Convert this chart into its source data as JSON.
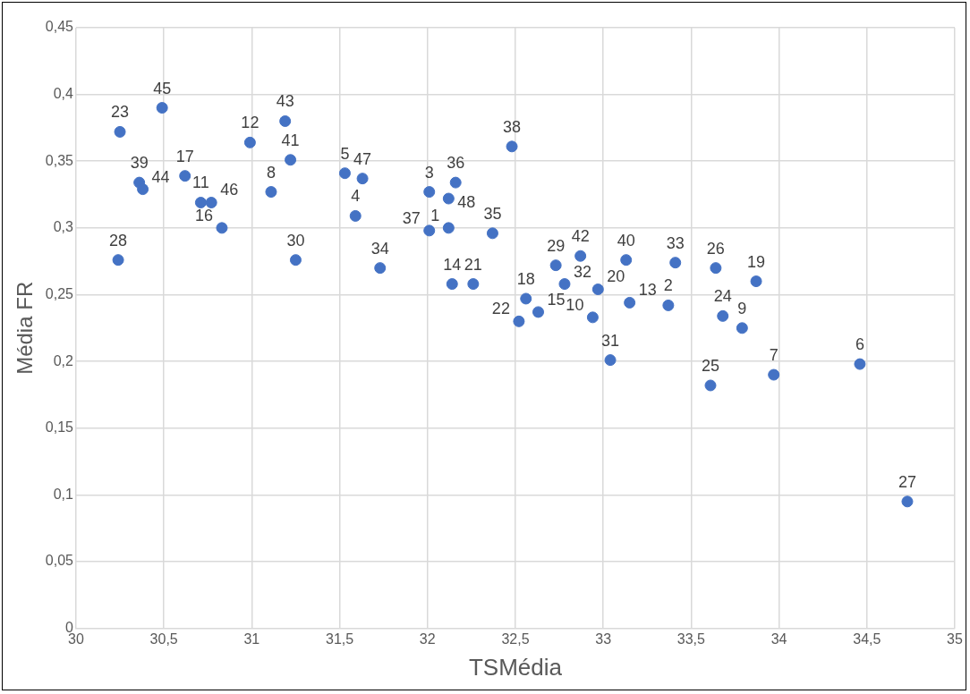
{
  "chart_data": {
    "type": "scatter",
    "xlabel": "TSMédia",
    "ylabel": "Média FR",
    "color": "#4472c4",
    "marker": "circle",
    "grid": true,
    "legend": false,
    "xlim": [
      30,
      35
    ],
    "ylim": [
      0,
      0.45
    ],
    "xticks": [
      30,
      {
        "value": 30.5,
        "label": "30,5"
      },
      31,
      {
        "value": 31.5,
        "label": "31,5"
      },
      32,
      {
        "value": 32.5,
        "label": "32,5"
      },
      33,
      {
        "value": 33.5,
        "label": "33,5"
      },
      34,
      {
        "value": 34.5,
        "label": "34,5"
      },
      35
    ],
    "yticks": [
      0,
      {
        "value": 0.05,
        "label": "0,05"
      },
      {
        "value": 0.1,
        "label": "0,1"
      },
      {
        "value": 0.15,
        "label": "0,15"
      },
      {
        "value": 0.2,
        "label": "0,2"
      },
      {
        "value": 0.25,
        "label": "0,25"
      },
      {
        "value": 0.3,
        "label": "0,3"
      },
      {
        "value": 0.35,
        "label": "0,35"
      },
      {
        "value": 0.4,
        "label": "0,4"
      },
      {
        "value": 0.45,
        "label": "0,45"
      }
    ],
    "x": [
      30.25,
      30.49,
      30.36,
      30.38,
      30.24,
      30.62,
      30.71,
      30.77,
      30.83,
      30.99,
      31.19,
      31.22,
      31.11,
      31.25,
      31.53,
      31.63,
      31.59,
      31.73,
      32.01,
      32.12,
      32.16,
      32.12,
      32.01,
      32.37,
      32.48,
      32.14,
      32.26,
      32.73,
      32.87,
      32.78,
      32.56,
      32.63,
      32.52,
      32.97,
      32.94,
      33.13,
      33.15,
      33.04,
      33.41,
      33.37,
      33.64,
      33.68,
      33.79,
      33.87,
      33.61,
      33.97,
      34.46,
      34.73
    ],
    "values": [
      0.372,
      0.39,
      0.334,
      0.329,
      0.276,
      0.339,
      0.319,
      0.319,
      0.3,
      0.364,
      0.38,
      0.351,
      0.327,
      0.276,
      0.341,
      0.337,
      0.309,
      0.27,
      0.327,
      0.322,
      0.334,
      0.3,
      0.298,
      0.296,
      0.361,
      0.258,
      0.258,
      0.272,
      0.279,
      0.258,
      0.247,
      0.237,
      0.23,
      0.254,
      0.233,
      0.276,
      0.244,
      0.201,
      0.274,
      0.242,
      0.27,
      0.234,
      0.225,
      0.26,
      0.182,
      0.19,
      0.198,
      0.095
    ],
    "annotations": [
      {
        "text": "23",
        "x": 30.25,
        "y": 0.372
      },
      {
        "text": "45",
        "x": 30.49,
        "y": 0.39
      },
      {
        "text": "39",
        "x": 30.36,
        "y": 0.334
      },
      {
        "text": "44",
        "x": 30.38,
        "y": 0.329
      },
      {
        "text": "28",
        "x": 30.24,
        "y": 0.276
      },
      {
        "text": "17",
        "x": 30.62,
        "y": 0.339
      },
      {
        "text": "11",
        "x": 30.71,
        "y": 0.319
      },
      {
        "text": "46",
        "x": 30.77,
        "y": 0.319
      },
      {
        "text": "16",
        "x": 30.83,
        "y": 0.3
      },
      {
        "text": "12",
        "x": 30.99,
        "y": 0.364
      },
      {
        "text": "43",
        "x": 31.19,
        "y": 0.38
      },
      {
        "text": "41",
        "x": 31.22,
        "y": 0.351
      },
      {
        "text": "8",
        "x": 31.11,
        "y": 0.327
      },
      {
        "text": "30",
        "x": 31.25,
        "y": 0.276
      },
      {
        "text": "5",
        "x": 31.53,
        "y": 0.341
      },
      {
        "text": "47",
        "x": 31.63,
        "y": 0.337
      },
      {
        "text": "4",
        "x": 31.59,
        "y": 0.309
      },
      {
        "text": "34",
        "x": 31.73,
        "y": 0.27
      },
      {
        "text": "3",
        "x": 32.01,
        "y": 0.327
      },
      {
        "text": "48",
        "x": 32.12,
        "y": 0.322
      },
      {
        "text": "36",
        "x": 32.16,
        "y": 0.334
      },
      {
        "text": "1",
        "x": 32.12,
        "y": 0.3
      },
      {
        "text": "37",
        "x": 32.01,
        "y": 0.298
      },
      {
        "text": "35",
        "x": 32.37,
        "y": 0.296
      },
      {
        "text": "38",
        "x": 32.48,
        "y": 0.361
      },
      {
        "text": "14",
        "x": 32.14,
        "y": 0.258
      },
      {
        "text": "21",
        "x": 32.26,
        "y": 0.258
      },
      {
        "text": "29",
        "x": 32.73,
        "y": 0.272
      },
      {
        "text": "42",
        "x": 32.87,
        "y": 0.279
      },
      {
        "text": "32",
        "x": 32.78,
        "y": 0.258
      },
      {
        "text": "18",
        "x": 32.56,
        "y": 0.247
      },
      {
        "text": "15",
        "x": 32.63,
        "y": 0.237
      },
      {
        "text": "22",
        "x": 32.52,
        "y": 0.23
      },
      {
        "text": "20",
        "x": 32.97,
        "y": 0.254
      },
      {
        "text": "10",
        "x": 32.94,
        "y": 0.233
      },
      {
        "text": "40",
        "x": 33.13,
        "y": 0.276
      },
      {
        "text": "13",
        "x": 33.15,
        "y": 0.244
      },
      {
        "text": "31",
        "x": 33.04,
        "y": 0.201
      },
      {
        "text": "33",
        "x": 33.41,
        "y": 0.274
      },
      {
        "text": "2",
        "x": 33.37,
        "y": 0.242
      },
      {
        "text": "26",
        "x": 33.64,
        "y": 0.27
      },
      {
        "text": "24",
        "x": 33.68,
        "y": 0.234
      },
      {
        "text": "9",
        "x": 33.79,
        "y": 0.225
      },
      {
        "text": "19",
        "x": 33.87,
        "y": 0.26
      },
      {
        "text": "25",
        "x": 33.61,
        "y": 0.182
      },
      {
        "text": "7",
        "x": 33.97,
        "y": 0.19
      },
      {
        "text": "6",
        "x": 34.46,
        "y": 0.198
      },
      {
        "text": "27",
        "x": 34.73,
        "y": 0.095
      }
    ]
  }
}
